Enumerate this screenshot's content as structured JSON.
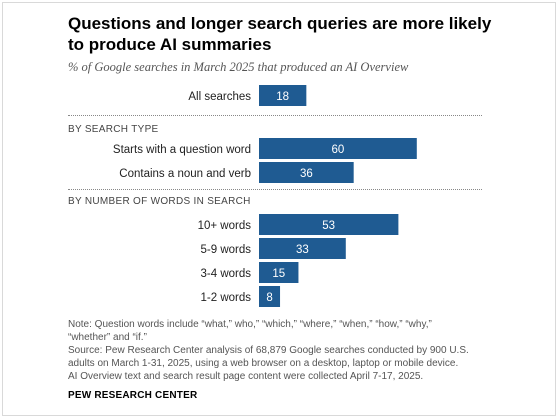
{
  "title_line1": "Questions and longer search queries are more likely",
  "title_line2": "to produce AI summaries",
  "subtitle": "% of Google searches in March 2025 that produced an AI Overview",
  "chart_data": {
    "type": "bar",
    "orientation": "horizontal",
    "bar_color": "#1f5b92",
    "groups": [
      {
        "label": "",
        "rows": [
          {
            "category": "All searches",
            "value": 18
          }
        ]
      },
      {
        "label": "BY SEARCH TYPE",
        "rows": [
          {
            "category": "Starts with a question word",
            "value": 60
          },
          {
            "category": "Contains a noun and verb",
            "value": 36
          }
        ]
      },
      {
        "label": "BY NUMBER OF WORDS IN SEARCH",
        "rows": [
          {
            "category": "10+ words",
            "value": 53
          },
          {
            "category": "5-9 words",
            "value": 33
          },
          {
            "category": "3-4 words",
            "value": 15
          },
          {
            "category": "1-2 words",
            "value": 8
          }
        ]
      }
    ]
  },
  "note_lines": [
    "Note: Question words include “what,” who,” “which,” “where,” “when,” “how,” “why,”",
    "“whether” and “if.”",
    "Source: Pew Research Center analysis of 68,879 Google searches conducted by 900 U.S.",
    "adults on March 1-31, 2025, using a web browser on a desktop, laptop or mobile device.",
    "AI Overview text and search result page content were collected April 7-17, 2025."
  ],
  "credit": "PEW RESEARCH CENTER"
}
